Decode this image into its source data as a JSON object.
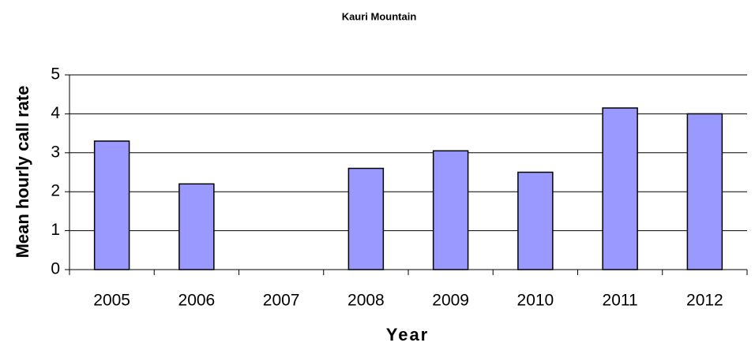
{
  "chart_data": {
    "type": "bar",
    "title": "Kauri Mountain",
    "xlabel": "Year",
    "ylabel": "Mean hourly call rate",
    "categories": [
      "2005",
      "2006",
      "2007",
      "2008",
      "2009",
      "2010",
      "2011",
      "2012"
    ],
    "values": [
      3.3,
      2.2,
      null,
      2.6,
      3.05,
      2.5,
      4.15,
      4.0
    ],
    "color": "#9999ff",
    "ylim": [
      0,
      5
    ],
    "yticks": [
      0,
      1,
      2,
      3,
      4,
      5
    ],
    "grid": true
  }
}
